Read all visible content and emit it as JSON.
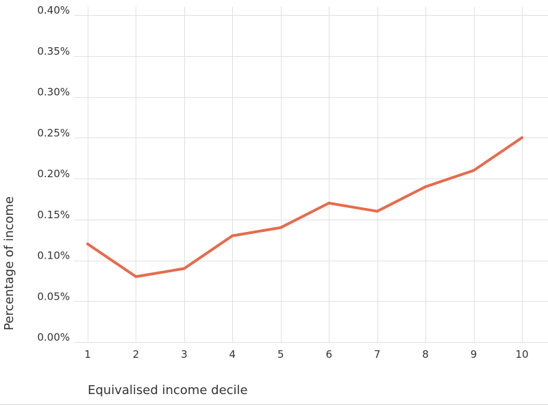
{
  "chart_data": {
    "type": "line",
    "title": "",
    "xlabel": "Equivalised income decile",
    "ylabel": "Percentage of income",
    "x": [
      1,
      2,
      3,
      4,
      5,
      6,
      7,
      8,
      9,
      10
    ],
    "series": [
      {
        "name": "",
        "values": [
          0.12,
          0.08,
          0.09,
          0.13,
          0.14,
          0.17,
          0.16,
          0.19,
          0.21,
          0.25
        ],
        "color": "#e86a4d"
      }
    ],
    "ylim": [
      0,
      0.4
    ],
    "y_ticks": [
      0,
      0.05,
      0.1,
      0.15,
      0.2,
      0.25,
      0.3,
      0.35,
      0.4
    ],
    "y_tick_labels": [
      "0.00%",
      "0.05%",
      "0.10%",
      "0.15%",
      "0.20%",
      "0.25%",
      "0.30%",
      "0.35%",
      "0.40%"
    ],
    "x_tick_labels": [
      "1",
      "2",
      "3",
      "4",
      "5",
      "6",
      "7",
      "8",
      "9",
      "10"
    ],
    "grid": true,
    "legend": "none"
  }
}
